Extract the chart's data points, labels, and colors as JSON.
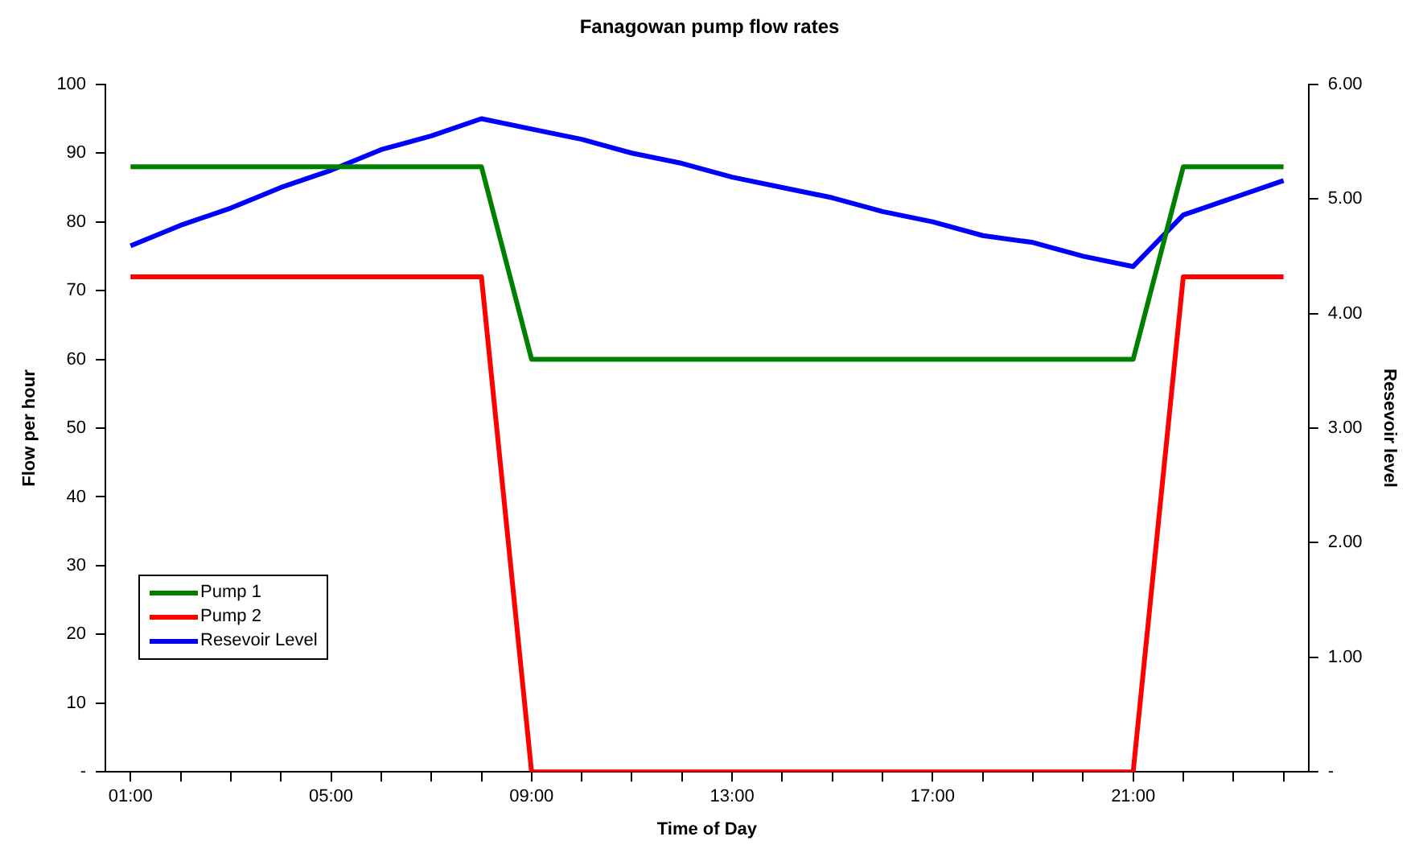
{
  "chart_data": {
    "type": "line",
    "title": "Fanagowan pump flow rates",
    "xlabel": "Time of Day",
    "ylabel": "Flow per hour",
    "y2label": "Resevoir level",
    "categories": [
      "01:00",
      null,
      null,
      null,
      "05:00",
      null,
      null,
      null,
      "09:00",
      null,
      null,
      null,
      "13:00",
      null,
      null,
      null,
      "17:00",
      null,
      null,
      null,
      "21:00",
      null,
      null,
      null
    ],
    "series": [
      {
        "name": "Pump 1",
        "color": "#008000",
        "values": [
          88,
          88,
          88,
          88,
          88,
          88,
          88,
          88,
          60,
          60,
          60,
          60,
          60,
          60,
          60,
          60,
          60,
          60,
          60,
          60,
          60,
          88,
          88,
          88
        ]
      },
      {
        "name": "Pump 2",
        "color": "#ff0000",
        "values": [
          72,
          72,
          72,
          72,
          72,
          72,
          72,
          72,
          0,
          0,
          0,
          0,
          0,
          0,
          0,
          0,
          0,
          0,
          0,
          0,
          0,
          72,
          72,
          72
        ]
      },
      {
        "name": "Resevoir Level",
        "color": "#0000ff",
        "axis": "y2",
        "values": [
          4.59,
          4.77,
          4.92,
          5.1,
          5.25,
          5.43,
          5.55,
          5.7,
          5.61,
          5.52,
          5.4,
          5.31,
          5.19,
          5.1,
          5.01,
          4.89,
          4.8,
          4.68,
          4.62,
          4.5,
          4.41,
          4.86,
          5.01,
          5.16
        ]
      }
    ],
    "ylim": [
      0,
      100
    ],
    "yticks": [
      {
        "value": 0,
        "label": "-"
      },
      10,
      20,
      30,
      40,
      50,
      60,
      70,
      80,
      90,
      100
    ],
    "y2lim": [
      0,
      6
    ],
    "y2ticks": [
      {
        "value": 0,
        "label": "-"
      },
      {
        "value": 1,
        "label": "1.00"
      },
      {
        "value": 2,
        "label": "2.00"
      },
      {
        "value": 3,
        "label": "3.00"
      },
      {
        "value": 4,
        "label": "4.00"
      },
      {
        "value": 5,
        "label": "5.00"
      },
      {
        "value": 6,
        "label": "6.00"
      }
    ],
    "grid": false,
    "legend": "bottom left",
    "marker": "none",
    "line_style": "solid"
  }
}
